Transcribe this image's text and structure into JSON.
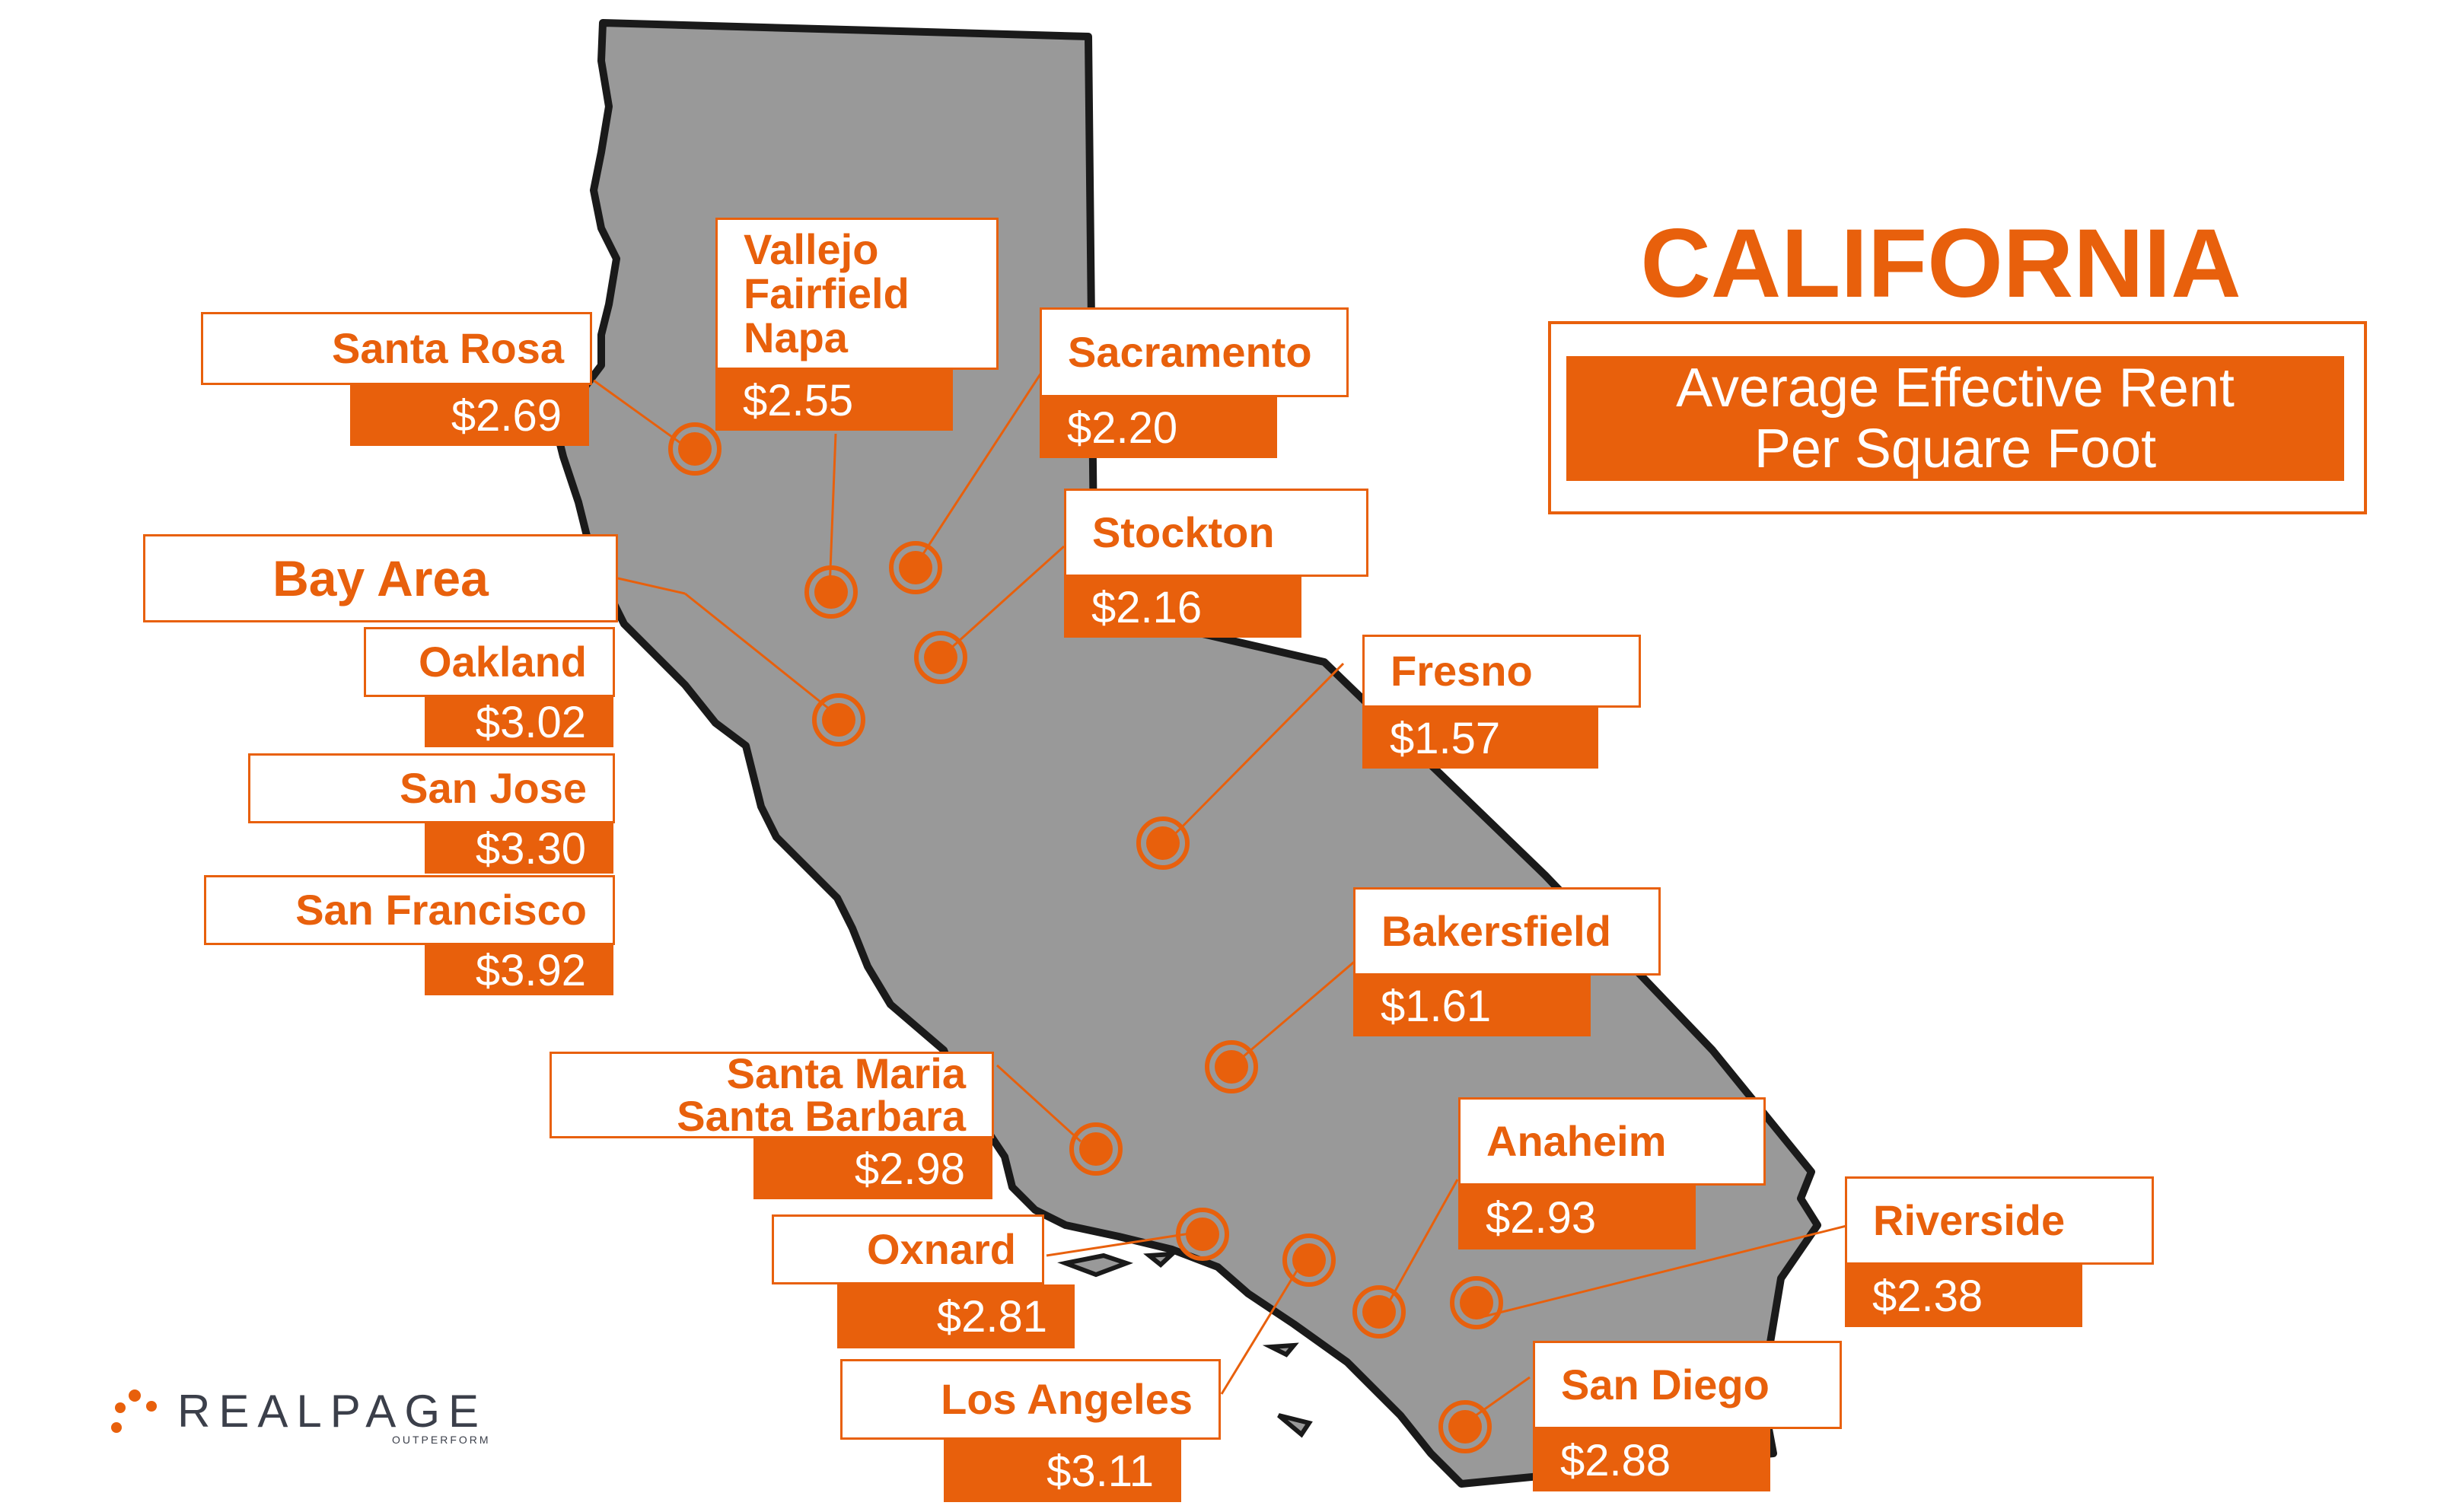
{
  "map": {
    "title": "CALIFORNIA",
    "subtitle_line1": "Average Effective Rent",
    "subtitle_line2": "Per Square Foot",
    "land_color": "#999999",
    "accent_color": "#e8600c",
    "region_group": "Bay Area"
  },
  "markets": {
    "santa_rosa": {
      "name": "Santa Rosa",
      "rent": "$2.69"
    },
    "vallejo": {
      "name_line1": "Vallejo",
      "name_line2": "Fairfield",
      "name_line3": "Napa",
      "rent": "$2.55"
    },
    "sacramento": {
      "name": "Sacramento",
      "rent": "$2.20"
    },
    "stockton": {
      "name": "Stockton",
      "rent": "$2.16"
    },
    "oakland": {
      "name": "Oakland",
      "rent": "$3.02"
    },
    "san_jose": {
      "name": "San Jose",
      "rent": "$3.30"
    },
    "san_francisco": {
      "name": "San Francisco",
      "rent": "$3.92"
    },
    "fresno": {
      "name": "Fresno",
      "rent": "$1.57"
    },
    "bakersfield": {
      "name": "Bakersfield",
      "rent": "$1.61"
    },
    "santa_maria": {
      "name_line1": "Santa Maria",
      "name_line2": "Santa Barbara",
      "rent": "$2.98"
    },
    "oxnard": {
      "name": "Oxnard",
      "rent": "$2.81"
    },
    "los_angeles": {
      "name": "Los Angeles",
      "rent": "$3.11"
    },
    "anaheim": {
      "name": "Anaheim",
      "rent": "$2.93"
    },
    "riverside": {
      "name": "Riverside",
      "rent": "$2.38"
    },
    "san_diego": {
      "name": "San Diego",
      "rent": "$2.88"
    }
  },
  "logo": {
    "brand": "REALPAGE",
    "tagline": "OUTPERFORM",
    "dot_color": "#e8600c"
  }
}
